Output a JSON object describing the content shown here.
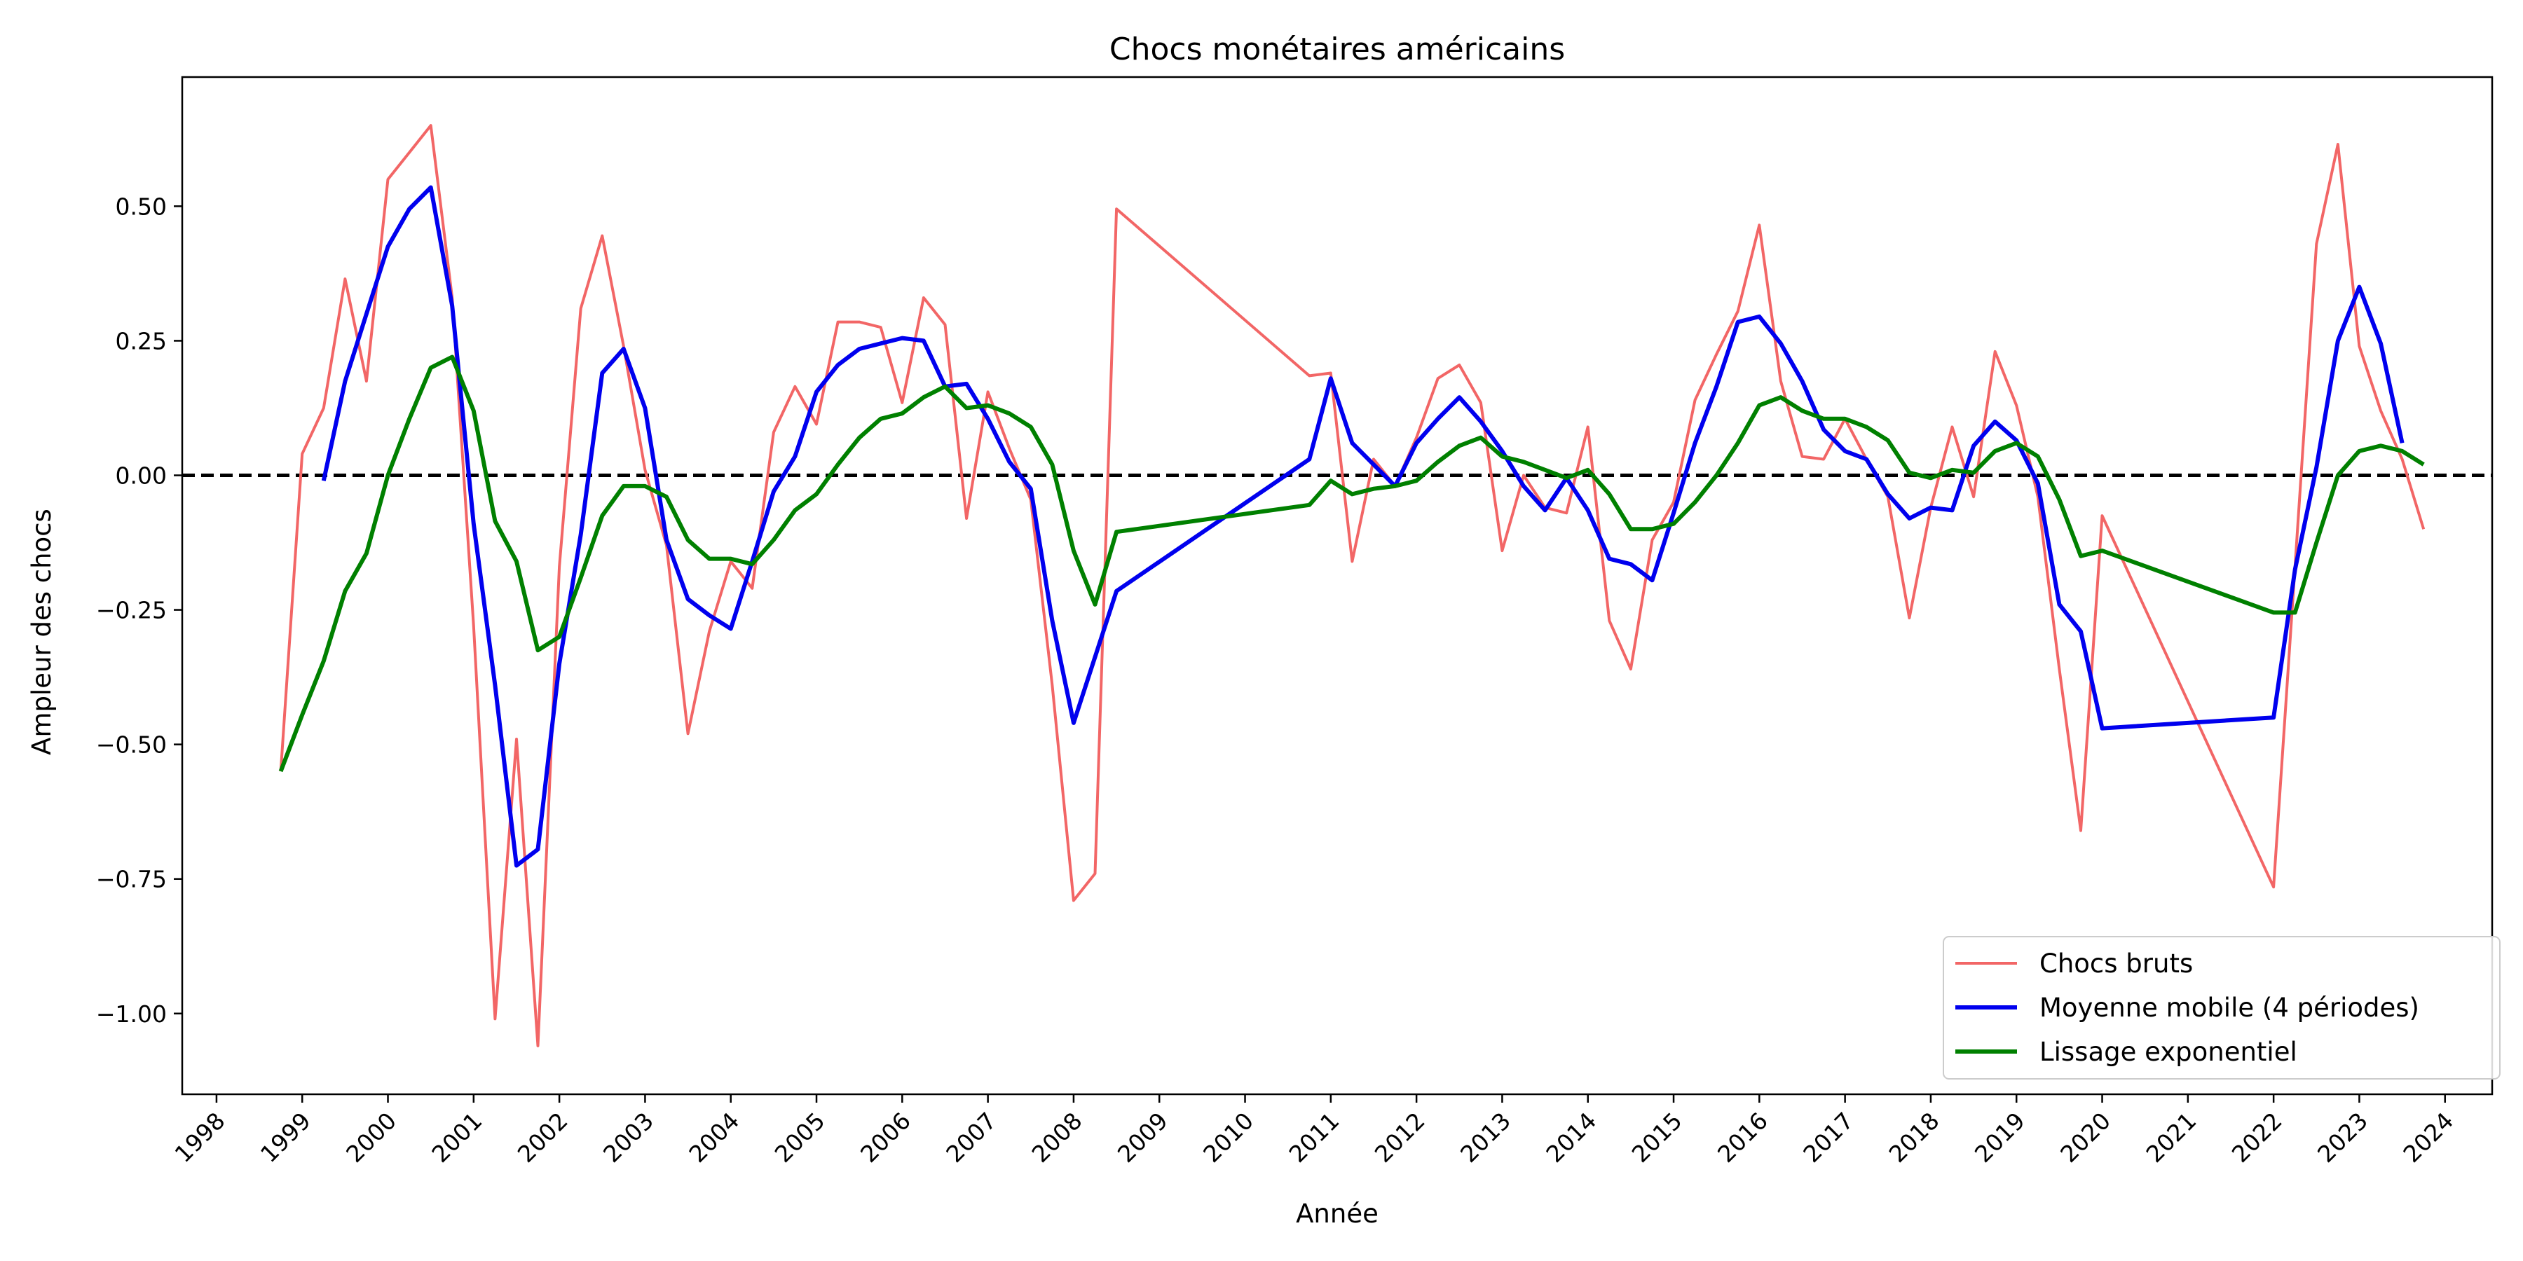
{
  "chart_data": {
    "type": "line",
    "title": "Chocs monétaires américains",
    "xlabel": "Année",
    "ylabel": "Ampleur des chocs",
    "xlim": [
      1997.6,
      2024.55
    ],
    "ylim": [
      -1.15,
      0.74
    ],
    "x_ticks": [
      1998,
      1999,
      2000,
      2001,
      2002,
      2003,
      2004,
      2005,
      2006,
      2007,
      2008,
      2009,
      2010,
      2011,
      2012,
      2013,
      2014,
      2015,
      2016,
      2017,
      2018,
      2019,
      2020,
      2021,
      2022,
      2023,
      2024
    ],
    "y_ticks": [
      {
        "value": 0.5,
        "label": "0.50"
      },
      {
        "value": 0.25,
        "label": "0.25"
      },
      {
        "value": 0.0,
        "label": "0.00"
      },
      {
        "value": -0.25,
        "label": "−0.25"
      },
      {
        "value": -0.5,
        "label": "−0.50"
      },
      {
        "value": -0.75,
        "label": "−0.75"
      },
      {
        "value": -1.0,
        "label": "−1.00"
      }
    ],
    "reference_line": {
      "y": 0.0,
      "style": "dashed",
      "color": "#000000"
    },
    "legend_position": "lower-right",
    "grid": false,
    "series": [
      {
        "name": "Chocs bruts",
        "color": "#f26666",
        "width": 4,
        "x": [
          1998.75,
          1999.0,
          1999.25,
          1999.5,
          1999.75,
          2000.0,
          2000.25,
          2000.5,
          2000.75,
          2001.0,
          2001.25,
          2001.5,
          2001.75,
          2002.0,
          2002.25,
          2002.5,
          2002.75,
          2003.0,
          2003.25,
          2003.5,
          2003.75,
          2004.0,
          2004.25,
          2004.5,
          2004.75,
          2005.0,
          2005.25,
          2005.5,
          2005.75,
          2006.0,
          2006.25,
          2006.5,
          2006.75,
          2007.0,
          2007.25,
          2007.5,
          2007.75,
          2008.0,
          2008.25,
          2008.5,
          2010.75,
          2011.0,
          2011.25,
          2011.5,
          2011.75,
          2012.0,
          2012.25,
          2012.5,
          2012.75,
          2013.0,
          2013.25,
          2013.5,
          2013.75,
          2014.0,
          2014.25,
          2014.5,
          2014.75,
          2015.0,
          2015.25,
          2015.5,
          2015.75,
          2016.0,
          2016.25,
          2016.5,
          2016.75,
          2017.0,
          2017.25,
          2017.5,
          2017.75,
          2018.0,
          2018.25,
          2018.5,
          2018.75,
          2019.0,
          2019.25,
          2019.5,
          2019.75,
          2020.0,
          2022.0,
          2022.25,
          2022.5,
          2022.75,
          2023.0,
          2023.25,
          2023.5,
          2023.75
        ],
        "y": [
          -0.55,
          0.04,
          0.125,
          0.365,
          0.175,
          0.55,
          0.6,
          0.65,
          0.33,
          -0.28,
          -1.01,
          -0.49,
          -1.06,
          -0.17,
          0.31,
          0.445,
          0.24,
          0.01,
          -0.13,
          -0.48,
          -0.29,
          -0.16,
          -0.21,
          0.08,
          0.165,
          0.095,
          0.285,
          0.285,
          0.275,
          0.135,
          0.33,
          0.28,
          -0.08,
          0.155,
          0.05,
          -0.045,
          -0.39,
          -0.79,
          -0.74,
          0.495,
          0.185,
          0.19,
          -0.16,
          0.03,
          -0.02,
          0.07,
          0.18,
          0.205,
          0.135,
          -0.14,
          0.0,
          -0.06,
          -0.07,
          0.09,
          -0.27,
          -0.36,
          -0.12,
          -0.05,
          0.14,
          0.225,
          0.305,
          0.465,
          0.175,
          0.035,
          0.03,
          0.105,
          0.03,
          -0.04,
          -0.265,
          -0.06,
          0.09,
          -0.04,
          0.23,
          0.13,
          -0.04,
          -0.36,
          -0.66,
          -0.075,
          -0.765,
          -0.17,
          0.43,
          0.615,
          0.24,
          0.12,
          0.03,
          -0.1
        ]
      },
      {
        "name": "Moyenne mobile (4 périodes)",
        "color": "#0000ee",
        "width": 6,
        "x": [
          1999.25,
          1999.5,
          1999.75,
          2000.0,
          2000.25,
          2000.5,
          2000.75,
          2001.0,
          2001.25,
          2001.5,
          2001.75,
          2002.0,
          2002.25,
          2002.5,
          2002.75,
          2003.0,
          2003.25,
          2003.5,
          2003.75,
          2004.0,
          2004.25,
          2004.5,
          2004.75,
          2005.0,
          2005.25,
          2005.5,
          2005.75,
          2006.0,
          2006.25,
          2006.5,
          2006.75,
          2007.0,
          2007.25,
          2007.5,
          2007.75,
          2008.0,
          2008.5,
          2010.75,
          2011.0,
          2011.25,
          2011.5,
          2011.75,
          2012.0,
          2012.25,
          2012.5,
          2012.75,
          2013.0,
          2013.25,
          2013.5,
          2013.75,
          2014.0,
          2014.25,
          2014.5,
          2014.75,
          2015.0,
          2015.25,
          2015.5,
          2015.75,
          2016.0,
          2016.25,
          2016.5,
          2016.75,
          2017.0,
          2017.25,
          2017.5,
          2017.75,
          2018.0,
          2018.25,
          2018.5,
          2018.75,
          2019.0,
          2019.25,
          2019.5,
          2019.75,
          2020.0,
          2022.0,
          2022.25,
          2022.5,
          2022.75,
          2023.0,
          2023.25,
          2023.5
        ],
        "y": [
          -0.01,
          0.175,
          0.3,
          0.425,
          0.495,
          0.535,
          0.315,
          -0.09,
          -0.39,
          -0.725,
          -0.695,
          -0.35,
          -0.11,
          0.19,
          0.235,
          0.125,
          -0.12,
          -0.23,
          -0.26,
          -0.285,
          -0.16,
          -0.03,
          0.035,
          0.155,
          0.205,
          0.235,
          0.245,
          0.255,
          0.25,
          0.165,
          0.17,
          0.105,
          0.025,
          -0.025,
          -0.27,
          -0.46,
          -0.215,
          0.03,
          0.18,
          0.06,
          0.02,
          -0.02,
          0.06,
          0.105,
          0.145,
          0.1,
          0.045,
          -0.02,
          -0.065,
          -0.005,
          -0.065,
          -0.155,
          -0.165,
          -0.195,
          -0.07,
          0.06,
          0.165,
          0.285,
          0.295,
          0.245,
          0.175,
          0.085,
          0.045,
          0.03,
          -0.035,
          -0.08,
          -0.06,
          -0.065,
          0.055,
          0.1,
          0.065,
          -0.015,
          -0.24,
          -0.29,
          -0.47,
          -0.45,
          -0.175,
          0.015,
          0.25,
          0.35,
          0.245,
          0.06
        ]
      },
      {
        "name": "Lissage exponentiel",
        "color": "#008000",
        "width": 6,
        "x": [
          1998.75,
          1999.0,
          1999.25,
          1999.5,
          1999.75,
          2000.0,
          2000.25,
          2000.5,
          2000.75,
          2001.0,
          2001.25,
          2001.5,
          2001.75,
          2002.0,
          2002.25,
          2002.5,
          2002.75,
          2003.0,
          2003.25,
          2003.5,
          2003.75,
          2004.0,
          2004.25,
          2004.5,
          2004.75,
          2005.0,
          2005.25,
          2005.5,
          2005.75,
          2006.0,
          2006.25,
          2006.5,
          2006.75,
          2007.0,
          2007.25,
          2007.5,
          2007.75,
          2008.0,
          2008.25,
          2008.5,
          2010.75,
          2011.0,
          2011.25,
          2011.5,
          2011.75,
          2012.0,
          2012.25,
          2012.5,
          2012.75,
          2013.0,
          2013.25,
          2013.5,
          2013.75,
          2014.0,
          2014.25,
          2014.5,
          2014.75,
          2015.0,
          2015.25,
          2015.5,
          2015.75,
          2016.0,
          2016.25,
          2016.5,
          2016.75,
          2017.0,
          2017.25,
          2017.5,
          2017.75,
          2018.0,
          2018.25,
          2018.5,
          2018.75,
          2019.0,
          2019.25,
          2019.5,
          2019.75,
          2020.0,
          2022.0,
          2022.25,
          2022.5,
          2022.75,
          2023.0,
          2023.25,
          2023.5,
          2023.75
        ],
        "y": [
          -0.55,
          -0.445,
          -0.345,
          -0.215,
          -0.145,
          0.0,
          0.105,
          0.2,
          0.22,
          0.12,
          -0.085,
          -0.16,
          -0.325,
          -0.3,
          -0.19,
          -0.075,
          -0.02,
          -0.02,
          -0.04,
          -0.12,
          -0.155,
          -0.155,
          -0.165,
          -0.12,
          -0.065,
          -0.035,
          0.02,
          0.07,
          0.105,
          0.115,
          0.145,
          0.165,
          0.125,
          0.13,
          0.115,
          0.09,
          0.02,
          -0.14,
          -0.24,
          -0.105,
          -0.055,
          -0.01,
          -0.035,
          -0.025,
          -0.02,
          -0.01,
          0.025,
          0.055,
          0.07,
          0.035,
          0.025,
          0.01,
          -0.005,
          0.01,
          -0.035,
          -0.1,
          -0.1,
          -0.09,
          -0.05,
          0.0,
          0.06,
          0.13,
          0.145,
          0.12,
          0.105,
          0.105,
          0.09,
          0.065,
          0.005,
          -0.005,
          0.01,
          0.005,
          0.045,
          0.06,
          0.035,
          -0.045,
          -0.15,
          -0.14,
          -0.255,
          -0.255,
          -0.125,
          0.0,
          0.045,
          0.055,
          0.045,
          0.02
        ]
      }
    ]
  }
}
